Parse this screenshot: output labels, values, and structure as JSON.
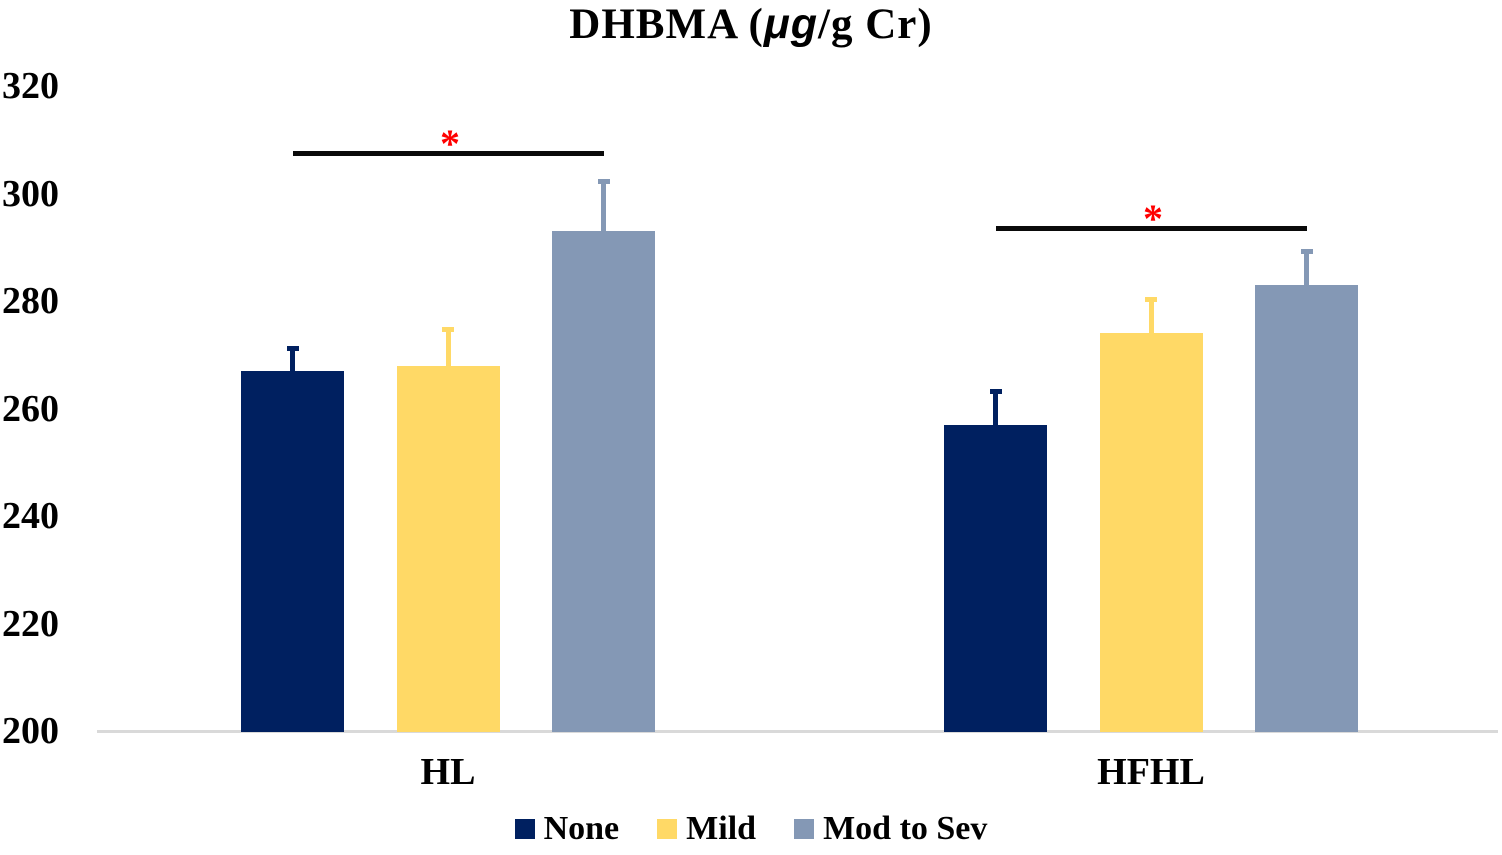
{
  "figure": {
    "title_prefix": "DHBMA (",
    "title_mu": "μg",
    "title_suffix": "/g Cr)"
  },
  "chart_data": {
    "type": "bar",
    "title": "DHBMA (μg/g Cr)",
    "categories": [
      "HL",
      "HFHL"
    ],
    "series": [
      {
        "name": "None",
        "color": "#002060",
        "values": [
          267,
          257
        ],
        "errors": [
          4.5,
          6.5
        ]
      },
      {
        "name": "Mild",
        "color": "#FFD966",
        "values": [
          268,
          274
        ],
        "errors": [
          7.0,
          6.5
        ]
      },
      {
        "name": "Mod to Sev",
        "color": "#8498B5",
        "values": [
          293,
          283
        ],
        "errors": [
          9.5,
          6.5
        ]
      }
    ],
    "ylim": [
      200,
      320
    ],
    "yticks": [
      320,
      300,
      280,
      260,
      240,
      220,
      200
    ],
    "grid": false,
    "legend_position": "bottom",
    "axis_line_color": "#D9D9D9",
    "error_bar_direction": "plus",
    "significance": [
      {
        "category": "HL",
        "from_series": "None",
        "to_series": "Mod to Sev",
        "label": "*",
        "label_color": "#FF0000",
        "line_color": "#0A0A0A",
        "y_value": 308
      },
      {
        "category": "HFHL",
        "from_series": "None",
        "to_series": "Mod to Sev",
        "label": "*",
        "label_color": "#FF0000",
        "line_color": "#0A0A0A",
        "y_value": 294
      }
    ]
  }
}
